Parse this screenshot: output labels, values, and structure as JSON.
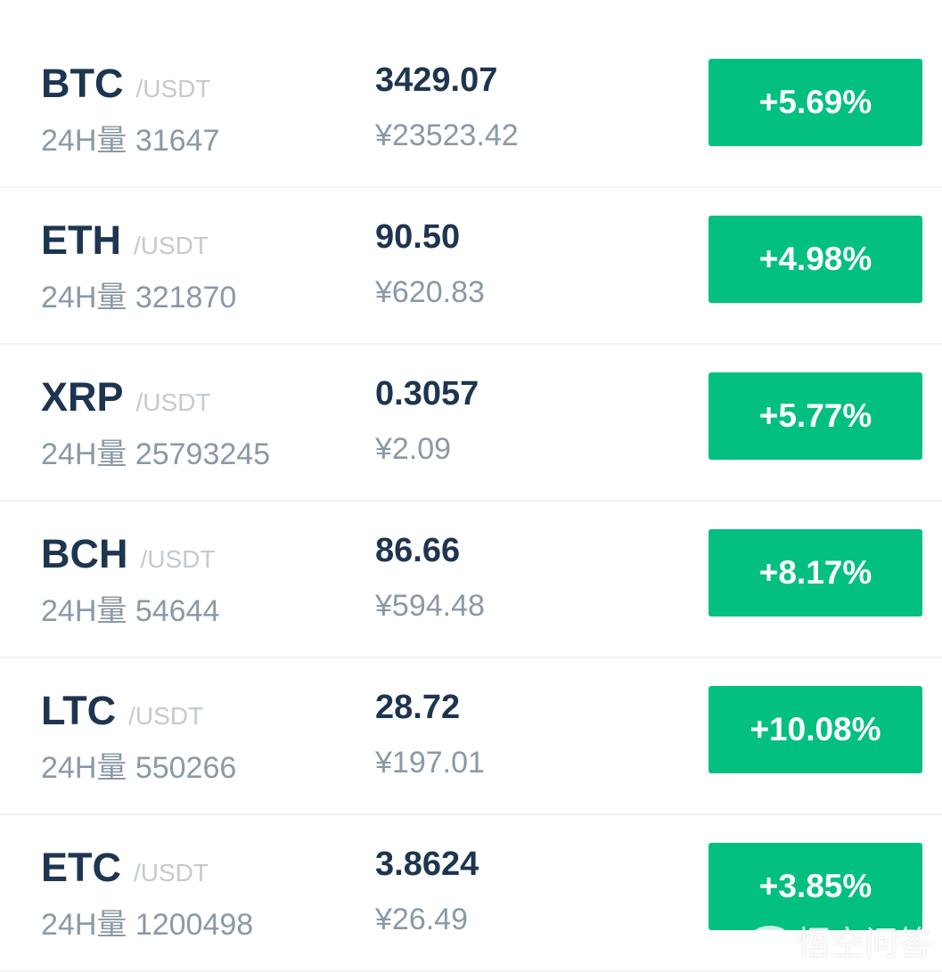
{
  "colors": {
    "up": "#03bf80",
    "symbol": "#1d3550",
    "muted": "#8a99a6"
  },
  "market": [
    {
      "symbol": "BTC",
      "pair": "/USDT",
      "vol_label": "24H量",
      "volume": "31647",
      "price": "3429.07",
      "cny": "¥23523.42",
      "change": "+5.69%"
    },
    {
      "symbol": "ETH",
      "pair": "/USDT",
      "vol_label": "24H量",
      "volume": "321870",
      "price": "90.50",
      "cny": "¥620.83",
      "change": "+4.98%"
    },
    {
      "symbol": "XRP",
      "pair": "/USDT",
      "vol_label": "24H量",
      "volume": "25793245",
      "price": "0.3057",
      "cny": "¥2.09",
      "change": "+5.77%"
    },
    {
      "symbol": "BCH",
      "pair": "/USDT",
      "vol_label": "24H量",
      "volume": "54644",
      "price": "86.66",
      "cny": "¥594.48",
      "change": "+8.17%"
    },
    {
      "symbol": "LTC",
      "pair": "/USDT",
      "vol_label": "24H量",
      "volume": "550266",
      "price": "28.72",
      "cny": "¥197.01",
      "change": "+10.08%"
    },
    {
      "symbol": "ETC",
      "pair": "/USDT",
      "vol_label": "24H量",
      "volume": "1200498",
      "price": "3.8624",
      "cny": "¥26.49",
      "change": "+3.85%"
    }
  ],
  "watermark": {
    "text": "悟空问答",
    "icon": "wukong-logo-icon"
  }
}
